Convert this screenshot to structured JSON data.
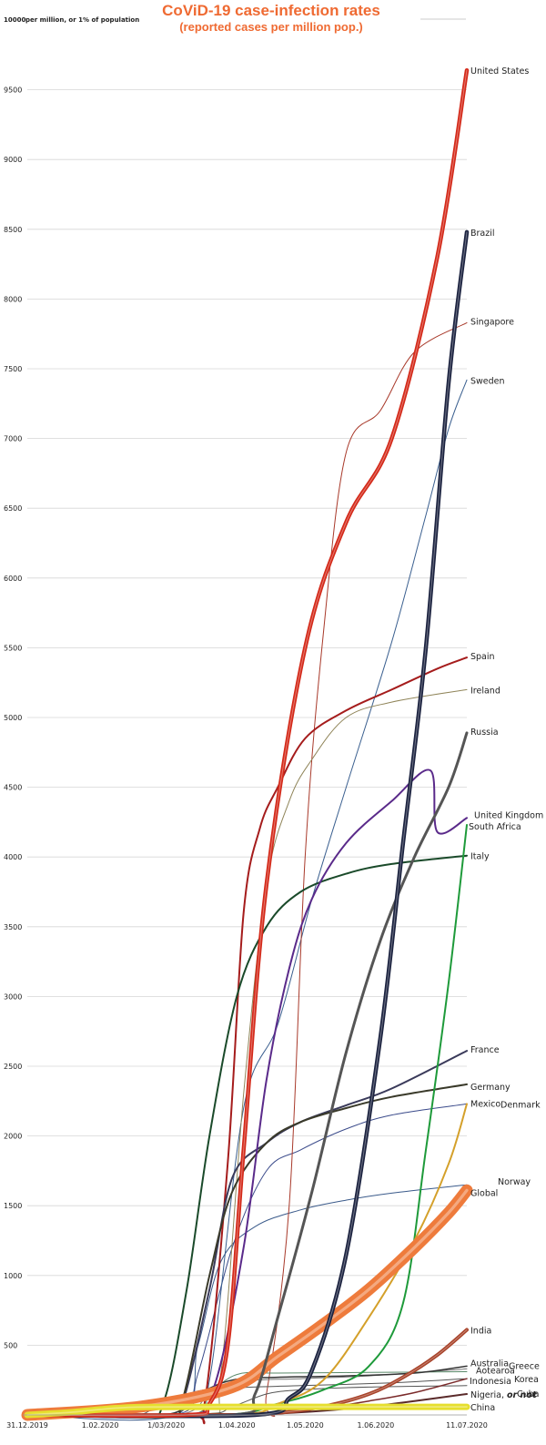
{
  "chart_data": {
    "type": "line",
    "title": "CoViD-19 case-infection rates",
    "subtitle": "(reported cases per million pop.)",
    "ylabel_top": "10000",
    "ylabel_note": "per million, or 1% of population",
    "ylim": [
      0,
      10000
    ],
    "yticks": [
      500,
      1000,
      1500,
      2000,
      2500,
      3000,
      3500,
      4000,
      4500,
      5000,
      5500,
      6000,
      6500,
      7000,
      7500,
      8000,
      8500,
      9000,
      9500
    ],
    "xlim_days": [
      0,
      193
    ],
    "xticks": [
      {
        "day": 0,
        "label": "31.12.2019"
      },
      {
        "day": 32,
        "label": "1.02.2020"
      },
      {
        "day": 61,
        "label": "1/03/2020"
      },
      {
        "day": 92,
        "label": "1.04.2020"
      },
      {
        "day": 122,
        "label": "1.05.2020"
      },
      {
        "day": 153,
        "label": "1.06.2020"
      },
      {
        "day": 193,
        "label": "11.07.2020"
      }
    ],
    "series": [
      {
        "name": "United States",
        "label": "United States",
        "color": "#d42a1a",
        "width": 4.5,
        "points": [
          [
            0,
            0
          ],
          [
            70,
            0
          ],
          [
            80,
            80
          ],
          [
            88,
            500
          ],
          [
            95,
            1900
          ],
          [
            105,
            3800
          ],
          [
            122,
            5500
          ],
          [
            140,
            6400
          ],
          [
            160,
            7000
          ],
          [
            180,
            8300
          ],
          [
            193,
            9640
          ]
        ]
      },
      {
        "name": "Brazil",
        "label": "Brazil",
        "color": "#1c2340",
        "width": 4.5,
        "points": [
          [
            0,
            0
          ],
          [
            100,
            0
          ],
          [
            115,
            120
          ],
          [
            125,
            320
          ],
          [
            140,
            1150
          ],
          [
            155,
            2700
          ],
          [
            165,
            4100
          ],
          [
            175,
            5500
          ],
          [
            185,
            7400
          ],
          [
            193,
            8480
          ]
        ]
      },
      {
        "name": "Singapore",
        "label": "Singapore",
        "color": "#a8392a",
        "width": 1,
        "points": [
          [
            0,
            0
          ],
          [
            100,
            0
          ],
          [
            105,
            150
          ],
          [
            115,
            1500
          ],
          [
            122,
            4000
          ],
          [
            130,
            5600
          ],
          [
            140,
            6900
          ],
          [
            155,
            7200
          ],
          [
            170,
            7620
          ],
          [
            193,
            7830
          ]
        ]
      },
      {
        "name": "Sweden",
        "label": "Sweden",
        "color": "#3a5f8f",
        "width": 1,
        "points": [
          [
            0,
            0
          ],
          [
            70,
            0
          ],
          [
            80,
            250
          ],
          [
            95,
            2200
          ],
          [
            110,
            2800
          ],
          [
            125,
            3700
          ],
          [
            140,
            4500
          ],
          [
            160,
            5540
          ],
          [
            175,
            6450
          ],
          [
            185,
            7070
          ],
          [
            193,
            7420
          ]
        ]
      },
      {
        "name": "Spain",
        "label": "Spain",
        "color": "#a51c1c",
        "width": 2,
        "points": [
          [
            0,
            0
          ],
          [
            70,
            0
          ],
          [
            78,
            100
          ],
          [
            88,
            1800
          ],
          [
            95,
            3600
          ],
          [
            102,
            4200
          ],
          [
            110,
            4500
          ],
          [
            122,
            4850
          ],
          [
            140,
            5050
          ],
          [
            160,
            5200
          ],
          [
            180,
            5350
          ],
          [
            193,
            5430
          ]
        ]
      },
      {
        "name": "Ireland",
        "label": "Ireland",
        "color": "#8f8458",
        "width": 1,
        "points": [
          [
            0,
            0
          ],
          [
            76,
            0
          ],
          [
            85,
            300
          ],
          [
            95,
            2300
          ],
          [
            105,
            3800
          ],
          [
            115,
            4400
          ],
          [
            125,
            4700
          ],
          [
            140,
            5000
          ],
          [
            160,
            5110
          ],
          [
            193,
            5200
          ]
        ]
      },
      {
        "name": "Russia",
        "label": "Russia",
        "color": "#555555",
        "width": 3,
        "points": [
          [
            0,
            0
          ],
          [
            90,
            0
          ],
          [
            100,
            150
          ],
          [
            110,
            700
          ],
          [
            125,
            1600
          ],
          [
            140,
            2600
          ],
          [
            155,
            3400
          ],
          [
            170,
            4000
          ],
          [
            185,
            4500
          ],
          [
            193,
            4890
          ]
        ]
      },
      {
        "name": "South Africa",
        "label": "South Africa",
        "color": "#1e9a3a",
        "width": 2,
        "points": [
          [
            0,
            0
          ],
          [
            85,
            0
          ],
          [
            110,
            80
          ],
          [
            130,
            180
          ],
          [
            150,
            350
          ],
          [
            165,
            800
          ],
          [
            175,
            1900
          ],
          [
            185,
            3100
          ],
          [
            193,
            4230
          ]
        ]
      },
      {
        "name": "United Kingdom",
        "label": "United Kingdom",
        "color": "#5a2a8a",
        "width": 2,
        "points": [
          [
            0,
            0
          ],
          [
            70,
            0
          ],
          [
            82,
            200
          ],
          [
            95,
            1200
          ],
          [
            105,
            2400
          ],
          [
            115,
            3200
          ],
          [
            125,
            3700
          ],
          [
            140,
            4100
          ],
          [
            160,
            4400
          ],
          [
            177,
            4620
          ],
          [
            180,
            4180
          ],
          [
            193,
            4280
          ]
        ]
      },
      {
        "name": "Italy",
        "label": "Italy",
        "color": "#1a4a2a",
        "width": 2,
        "points": [
          [
            0,
            0
          ],
          [
            50,
            0
          ],
          [
            60,
            100
          ],
          [
            70,
            900
          ],
          [
            80,
            2000
          ],
          [
            92,
            3000
          ],
          [
            105,
            3500
          ],
          [
            120,
            3750
          ],
          [
            140,
            3880
          ],
          [
            160,
            3950
          ],
          [
            193,
            4010
          ]
        ]
      },
      {
        "name": "France",
        "label": "France",
        "color": "#3a3a5a",
        "width": 2,
        "points": [
          [
            0,
            0
          ],
          [
            60,
            0
          ],
          [
            68,
            80
          ],
          [
            80,
            900
          ],
          [
            90,
            1700
          ],
          [
            105,
            1950
          ],
          [
            120,
            2100
          ],
          [
            140,
            2220
          ],
          [
            160,
            2340
          ],
          [
            193,
            2610
          ]
        ]
      },
      {
        "name": "Germany",
        "label": "Germany",
        "color": "#3a3a2a",
        "width": 2,
        "points": [
          [
            0,
            0
          ],
          [
            60,
            0
          ],
          [
            68,
            100
          ],
          [
            80,
            1000
          ],
          [
            90,
            1600
          ],
          [
            105,
            1950
          ],
          [
            120,
            2100
          ],
          [
            140,
            2200
          ],
          [
            160,
            2280
          ],
          [
            193,
            2370
          ]
        ]
      },
      {
        "name": "Mexico",
        "label": "Mexico",
        "color": "#d4a02a",
        "width": 2,
        "points": [
          [
            0,
            0
          ],
          [
            90,
            0
          ],
          [
            110,
            80
          ],
          [
            130,
            250
          ],
          [
            150,
            700
          ],
          [
            170,
            1250
          ],
          [
            185,
            1800
          ],
          [
            193,
            2230
          ]
        ]
      },
      {
        "name": "Denmark",
        "label": "Denmark",
        "color": "#3a4a8a",
        "width": 1,
        "points": [
          [
            0,
            0
          ],
          [
            65,
            0
          ],
          [
            75,
            300
          ],
          [
            90,
            1200
          ],
          [
            105,
            1750
          ],
          [
            120,
            1900
          ],
          [
            140,
            2050
          ],
          [
            160,
            2150
          ],
          [
            193,
            2230
          ]
        ]
      },
      {
        "name": "Norway",
        "label": "Norway",
        "color": "#3a5a8a",
        "width": 1,
        "points": [
          [
            0,
            0
          ],
          [
            65,
            0
          ],
          [
            75,
            500
          ],
          [
            85,
            1100
          ],
          [
            100,
            1350
          ],
          [
            120,
            1470
          ],
          [
            140,
            1540
          ],
          [
            160,
            1590
          ],
          [
            193,
            1650
          ]
        ]
      },
      {
        "name": "Global",
        "label": "Global",
        "color": "#ee7b3c",
        "width": 13,
        "points": [
          [
            0,
            0
          ],
          [
            50,
            60
          ],
          [
            90,
            200
          ],
          [
            110,
            420
          ],
          [
            130,
            650
          ],
          [
            150,
            900
          ],
          [
            170,
            1200
          ],
          [
            185,
            1450
          ],
          [
            193,
            1610
          ]
        ]
      },
      {
        "name": "India",
        "label": "India",
        "color": "#a8432a",
        "width": 4,
        "points": [
          [
            0,
            0
          ],
          [
            90,
            0
          ],
          [
            110,
            15
          ],
          [
            130,
            60
          ],
          [
            150,
            150
          ],
          [
            165,
            270
          ],
          [
            180,
            430
          ],
          [
            193,
            610
          ]
        ]
      },
      {
        "name": "Australia",
        "label": "Australia",
        "color": "#333333",
        "width": 1.5,
        "points": [
          [
            0,
            0
          ],
          [
            60,
            0
          ],
          [
            75,
            150
          ],
          [
            90,
            250
          ],
          [
            110,
            270
          ],
          [
            140,
            280
          ],
          [
            170,
            300
          ],
          [
            193,
            350
          ]
        ]
      },
      {
        "name": "Greece",
        "label": "Greece",
        "color": "#777777",
        "width": 1,
        "points": [
          [
            0,
            0
          ],
          [
            65,
            0
          ],
          [
            80,
            150
          ],
          [
            95,
            240
          ],
          [
            120,
            260
          ],
          [
            150,
            280
          ],
          [
            193,
            330
          ]
        ]
      },
      {
        "name": "Aotearoa",
        "label": "Aotearoa",
        "color": "#5a8a6a",
        "width": 1,
        "points": [
          [
            0,
            0
          ],
          [
            70,
            0
          ],
          [
            80,
            150
          ],
          [
            92,
            290
          ],
          [
            110,
            300
          ],
          [
            150,
            305
          ],
          [
            193,
            310
          ]
        ]
      },
      {
        "name": "Korea",
        "label": "Korea",
        "color": "#555555",
        "width": 1,
        "points": [
          [
            0,
            0
          ],
          [
            45,
            0
          ],
          [
            55,
            40
          ],
          [
            70,
            150
          ],
          [
            85,
            190
          ],
          [
            120,
            210
          ],
          [
            160,
            230
          ],
          [
            193,
            260
          ]
        ]
      },
      {
        "name": "Indonesia",
        "label": "Indonesia",
        "color": "#7a2a2a",
        "width": 1.5,
        "points": [
          [
            0,
            0
          ],
          [
            90,
            0
          ],
          [
            110,
            20
          ],
          [
            130,
            50
          ],
          [
            150,
            100
          ],
          [
            170,
            160
          ],
          [
            193,
            260
          ]
        ]
      },
      {
        "name": "Cuba",
        "label": "Cuba",
        "color": "#555555",
        "width": 1,
        "points": [
          [
            0,
            0
          ],
          [
            75,
            0
          ],
          [
            90,
            60
          ],
          [
            105,
            150
          ],
          [
            120,
            180
          ],
          [
            150,
            200
          ],
          [
            193,
            210
          ]
        ]
      },
      {
        "name": "Nigeria",
        "label": "Nigeria, ",
        "label_em": "or not",
        "color": "#5a2a2a",
        "width": 2,
        "points": [
          [
            0,
            0
          ],
          [
            90,
            0
          ],
          [
            110,
            10
          ],
          [
            130,
            30
          ],
          [
            150,
            60
          ],
          [
            170,
            100
          ],
          [
            193,
            150
          ]
        ]
      },
      {
        "name": "China",
        "label": "China",
        "color": "#e6df2e",
        "width": 7,
        "points": [
          [
            0,
            0
          ],
          [
            20,
            20
          ],
          [
            32,
            40
          ],
          [
            45,
            55
          ],
          [
            60,
            57
          ],
          [
            90,
            58
          ],
          [
            130,
            58
          ],
          [
            193,
            58
          ]
        ]
      }
    ]
  }
}
